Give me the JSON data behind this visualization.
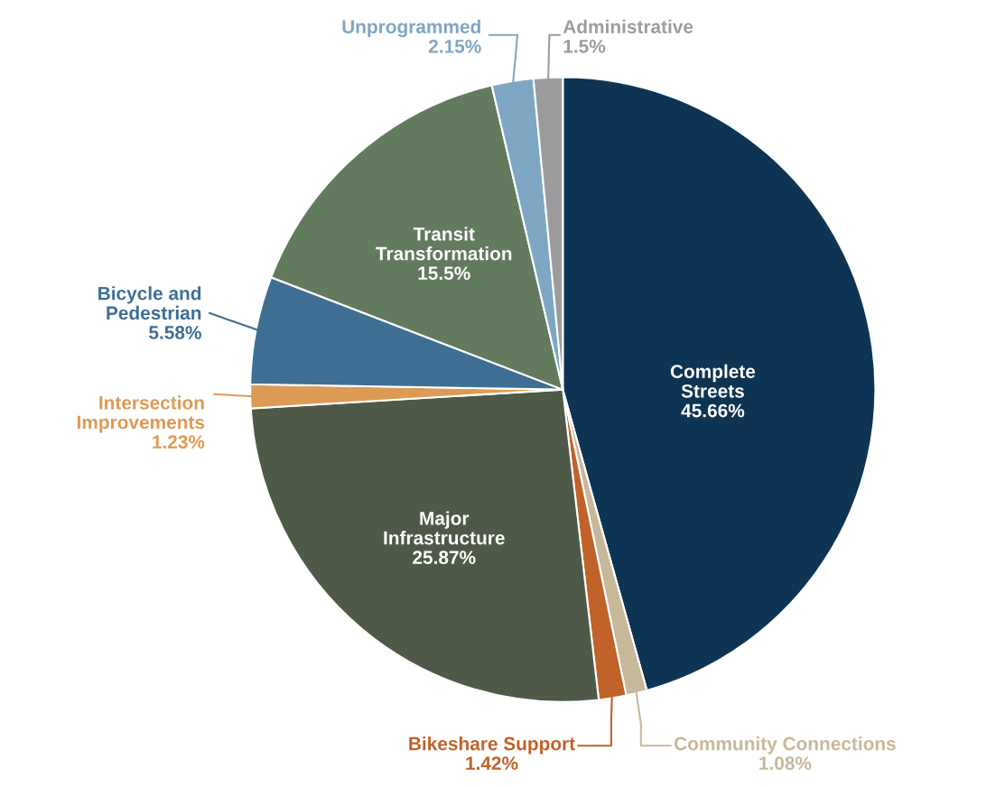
{
  "chart_data": {
    "type": "pie",
    "categories": [
      "Complete\nStreets",
      "Community Connections",
      "Bikeshare Support",
      "Major\nInfrastructure",
      "Intersection\nImprovements",
      "Bicycle and\nPedestrian",
      "Transit\nTransformation",
      "Unprogrammed",
      "Administrative"
    ],
    "values": [
      45.66,
      1.08,
      1.42,
      25.87,
      1.23,
      5.58,
      15.5,
      2.15,
      1.5
    ],
    "value_labels": [
      "45.66%",
      "1.08%",
      "1.42%",
      "25.87%",
      "1.23%",
      "5.58%",
      "15.5%",
      "2.15%",
      "1.5%"
    ],
    "colors": [
      "#0e3453",
      "#c8b89a",
      "#c0622a",
      "#4e5a47",
      "#dd9a55",
      "#3f6f93",
      "#627a5e",
      "#7ea7c4",
      "#9c9c9f"
    ],
    "legend": false
  }
}
